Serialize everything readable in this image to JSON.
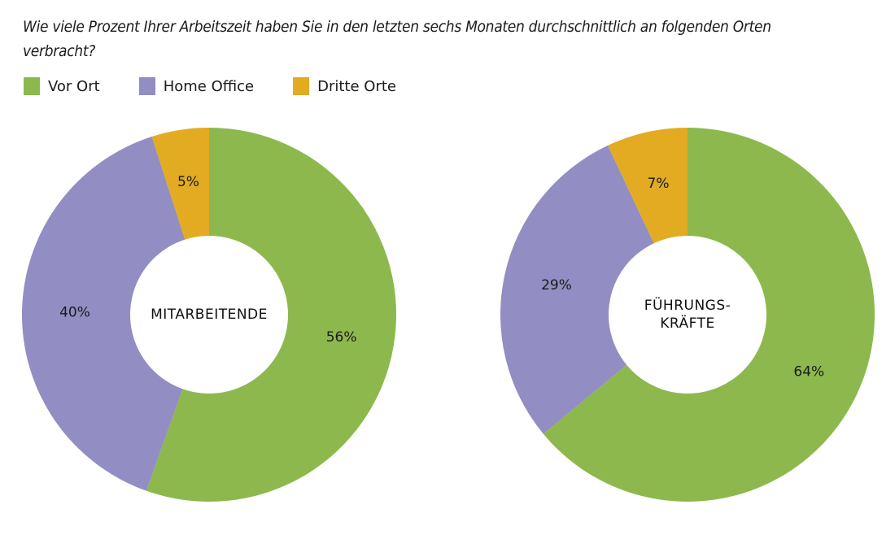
{
  "title": "Wie viele Prozent Ihrer Arbeitszeit haben Sie in den letzten sechs Monaten durchschnittlich an folgenden Orten verbracht?",
  "legend": [
    {
      "label": "Vor Ort",
      "color": "#8db84e"
    },
    {
      "label": "Home Office",
      "color": "#928dc2"
    },
    {
      "label": "Dritte Orte",
      "color": "#e2ab22"
    }
  ],
  "chart_data": [
    {
      "type": "pie",
      "variant": "donut",
      "center_label": [
        "MITARBEITENDE"
      ],
      "categories": [
        "Vor Ort",
        "Home Office",
        "Dritte Orte"
      ],
      "values": [
        56,
        40,
        5
      ],
      "labels": [
        "56%",
        "40%",
        "5%"
      ],
      "colors": [
        "#8db84e",
        "#928dc2",
        "#e2ab22"
      ]
    },
    {
      "type": "pie",
      "variant": "donut",
      "center_label": [
        "FÜHRUNGS-",
        "KRÄFTE"
      ],
      "categories": [
        "Vor Ort",
        "Home Office",
        "Dritte Orte"
      ],
      "values": [
        64,
        29,
        7
      ],
      "labels": [
        "64%",
        "29%",
        "7%"
      ],
      "colors": [
        "#8db84e",
        "#928dc2",
        "#e2ab22"
      ]
    }
  ]
}
